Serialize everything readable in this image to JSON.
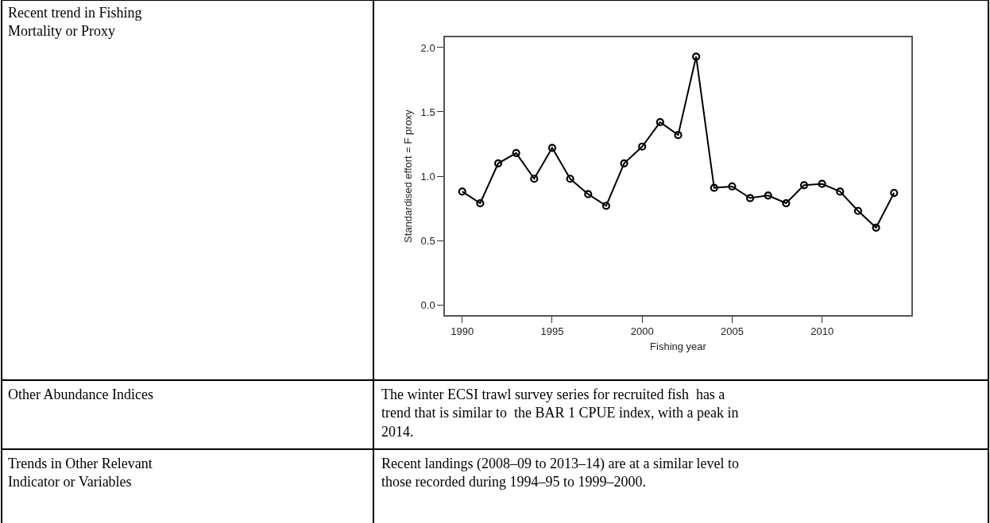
{
  "chart_data": {
    "type": "line",
    "xlabel": "Fishing year",
    "ylabel": "Standardised effort = F proxy",
    "x": [
      1990,
      1991,
      1992,
      1993,
      1994,
      1995,
      1996,
      1997,
      1998,
      1999,
      2000,
      2001,
      2002,
      2003,
      2004,
      2005,
      2006,
      2007,
      2008,
      2009,
      2010,
      2011,
      2012,
      2013,
      2014
    ],
    "series": [
      {
        "color": "#000000",
        "values": [
          0.88,
          0.79,
          1.1,
          1.18,
          0.98,
          1.22,
          0.98,
          0.86,
          0.77,
          1.1,
          1.23,
          1.42,
          1.32,
          1.93,
          0.91,
          0.92,
          0.83,
          0.85,
          0.79,
          0.93,
          0.94,
          0.88,
          0.73,
          0.6,
          0.87
        ]
      }
    ],
    "xlim": [
      1989.04,
      2014.96
    ],
    "xticks": [
      1990,
      1995,
      2000,
      2005,
      2010
    ],
    "ylim": [
      -0.08,
      2.08
    ],
    "yticks": [
      {
        "value": 0,
        "label": "0.0"
      },
      0.5,
      {
        "value": 1,
        "label": "1.0"
      },
      1.5,
      {
        "value": 2,
        "label": "2.0"
      }
    ],
    "marker": "circle",
    "line_style": "solid",
    "annotations": [
      "Recent trend in Fishing Mortality or Proxy",
      "Other Abundance Indices",
      "The winter ECSI trawl survey series for recruited fish  has a trend that is similar to  the BAR 1 CPUE index, with a peak in 2014.",
      "Trends in Other Relevant Indicator or Variables",
      "Recent landings (2008–09 to 2013–14) are at a similar level to those recorded during 1994–95 to 1999–2000."
    ]
  }
}
